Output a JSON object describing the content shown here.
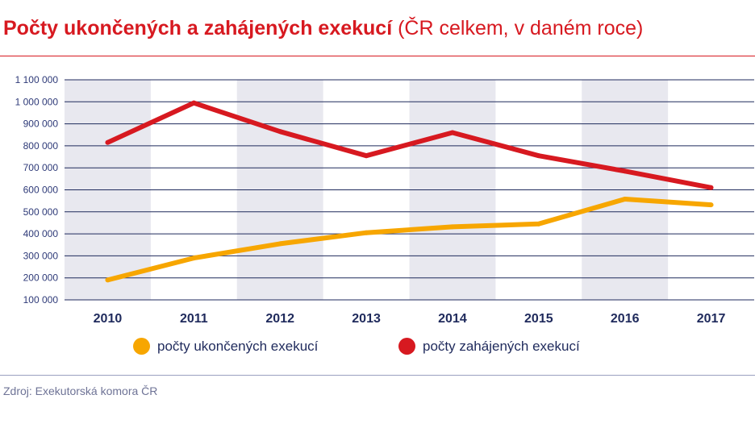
{
  "header": {
    "title": "Počty ukončených a zahájených exekucí",
    "subtitle": "(ČR celkem, v daném roce)"
  },
  "source": "Zdroj: Exekutorská komora ČR",
  "colors": {
    "title": "#d71920",
    "ukoncene": "#f7a600",
    "zahajene": "#d71920",
    "band": "#e8e8ef",
    "grid": "#1f2a5c",
    "text": "#1f2a5c"
  },
  "legend": {
    "items": [
      {
        "label": "počty ukončených exekucí",
        "color": "#f7a600"
      },
      {
        "label": "počty zahájených exekucí",
        "color": "#d71920"
      }
    ]
  },
  "chart_data": {
    "type": "line",
    "title": "Počty ukončených a zahájených exekucí",
    "subtitle": "(ČR celkem, v daném roce)",
    "categories": [
      "2010",
      "2011",
      "2012",
      "2013",
      "2014",
      "2015",
      "2016",
      "2017"
    ],
    "series": [
      {
        "name": "počty ukončených exekucí",
        "color": "#f7a600",
        "values": [
          190000,
          290000,
          355000,
          405000,
          432000,
          445000,
          558000,
          532000
        ]
      },
      {
        "name": "počty zahájených exekucí",
        "color": "#d71920",
        "values": [
          815000,
          995000,
          865000,
          755000,
          860000,
          755000,
          685000,
          610000
        ]
      }
    ],
    "ylim": [
      100000,
      1100000
    ],
    "yticks": [
      100000,
      200000,
      300000,
      400000,
      500000,
      600000,
      700000,
      800000,
      900000,
      1000000,
      1100000
    ],
    "ytick_labels": [
      "100 000",
      "200 000",
      "300 000",
      "400 000",
      "500 000",
      "600 000",
      "700 000",
      "800 000",
      "900 000",
      "1 000 000",
      "1 100 000"
    ],
    "shaded_bands": [
      "2010",
      "2012",
      "2014",
      "2016"
    ],
    "grid": true,
    "legend_position": "bottom-center"
  }
}
